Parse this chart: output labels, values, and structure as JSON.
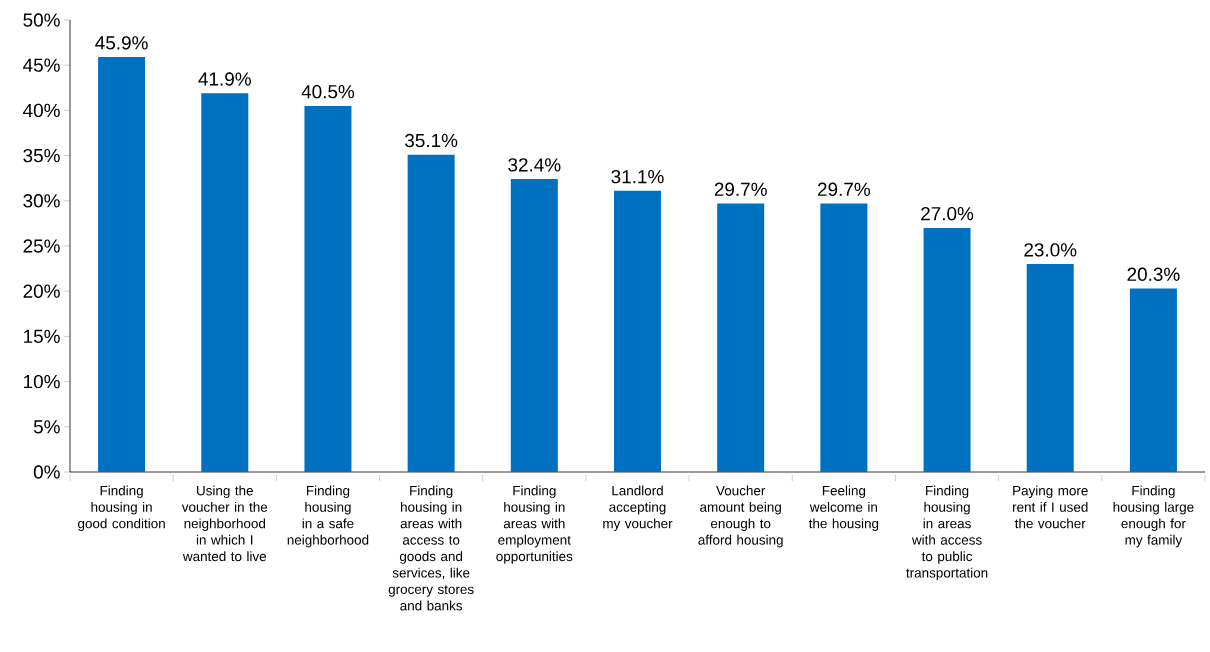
{
  "chart_data": {
    "type": "bar",
    "categories": [
      "Finding housing in good condition",
      "Using the voucher in the neighborhood in which I wanted to live",
      "Finding housing in a safe neighborhood",
      "Finding housing in areas with access to goods and services, like grocery stores and banks",
      "Finding housing in areas with employment opportunities",
      "Landlord accepting my voucher",
      "Voucher amount being enough to afford housing",
      "Feeling welcome in the housing",
      "Finding housing in areas with access to public transportation",
      "Paying more rent if I used the voucher",
      "Finding housing large enough for my family"
    ],
    "values": [
      45.9,
      41.9,
      40.5,
      35.1,
      32.4,
      31.1,
      29.7,
      29.7,
      27.0,
      23.0,
      20.3
    ],
    "value_labels": [
      "45.9%",
      "41.9%",
      "40.5%",
      "35.1%",
      "32.4%",
      "31.1%",
      "29.7%",
      "29.7%",
      "27.0%",
      "23.0%",
      "20.3%"
    ],
    "color": "#0070c0",
    "ylim": [
      0,
      50
    ],
    "yticks": [
      {
        "value": 0,
        "label": "0%"
      },
      {
        "value": 5,
        "label": "5%"
      },
      {
        "value": 10,
        "label": "10%"
      },
      {
        "value": 15,
        "label": "15%"
      },
      {
        "value": 20,
        "label": "20%"
      },
      {
        "value": 25,
        "label": "25%"
      },
      {
        "value": 30,
        "label": "30%"
      },
      {
        "value": 35,
        "label": "35%"
      },
      {
        "value": 40,
        "label": "40%"
      },
      {
        "value": 45,
        "label": "45%"
      },
      {
        "value": 50,
        "label": "50%"
      }
    ],
    "grid": false
  }
}
